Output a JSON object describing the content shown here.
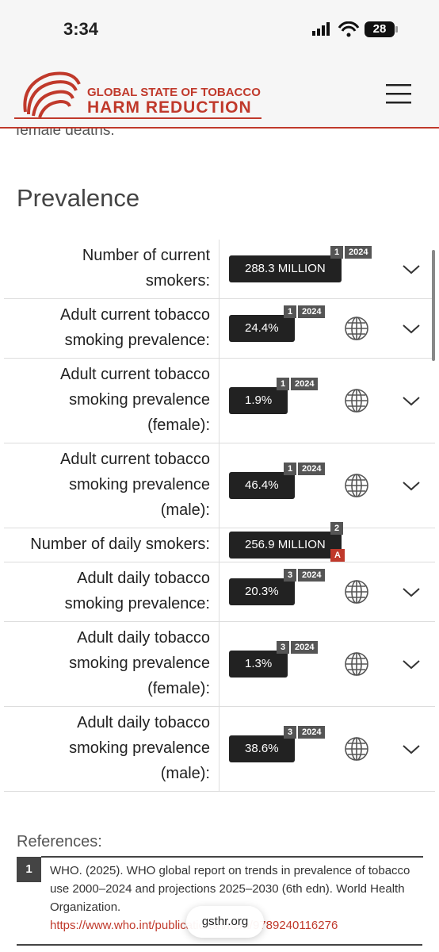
{
  "status_bar": {
    "time": "3:34",
    "battery": "28"
  },
  "header": {
    "title_line1": "GLOBAL STATE OF TOBACCO",
    "title_line2": "HARM REDUCTION"
  },
  "partial_text": "female deaths.",
  "section_title": "Prevalence",
  "rows": [
    {
      "label_lines": [
        "Number of current",
        "smokers:"
      ],
      "value": "288.3 MILLION",
      "source": "1",
      "year": "2024",
      "globe": false,
      "expandable": true
    },
    {
      "label_lines": [
        "Adult current tobacco",
        "smoking prevalence:"
      ],
      "value": "24.4%",
      "source": "1",
      "year": "2024",
      "globe": true,
      "expandable": true
    },
    {
      "label_lines": [
        "Adult current tobacco",
        "smoking prevalence",
        "(female):"
      ],
      "value": "1.9%",
      "source": "1",
      "year": "2024",
      "globe": true,
      "expandable": true
    },
    {
      "label_lines": [
        "Adult current tobacco",
        "smoking prevalence",
        "(male):"
      ],
      "value": "46.4%",
      "source": "1",
      "year": "2024",
      "globe": true,
      "expandable": true
    },
    {
      "label_lines": [
        "Number of daily smokers:"
      ],
      "value": "256.9 MILLION",
      "source": "2",
      "grade": "A",
      "globe": false,
      "expandable": false
    },
    {
      "label_lines": [
        "Adult daily tobacco",
        "smoking prevalence:"
      ],
      "value": "20.3%",
      "source": "3",
      "year": "2024",
      "globe": true,
      "expandable": true
    },
    {
      "label_lines": [
        "Adult daily tobacco",
        "smoking prevalence",
        "(female):"
      ],
      "value": "1.3%",
      "source": "3",
      "year": "2024",
      "globe": true,
      "expandable": true
    },
    {
      "label_lines": [
        "Adult daily tobacco",
        "smoking prevalence",
        "(male):"
      ],
      "value": "38.6%",
      "source": "3",
      "year": "2024",
      "globe": true,
      "expandable": true
    }
  ],
  "references": {
    "title": "References:",
    "items": [
      {
        "number": "1",
        "text": "WHO. (2025). WHO global report on trends in prevalence of tobacco use 2000–2024 and projections 2025–2030 (6th edn). World Health Organization.",
        "link": "https://www.who.int/publications/i/item/9789240116276"
      }
    ]
  },
  "url_pill": "gsthr.org"
}
